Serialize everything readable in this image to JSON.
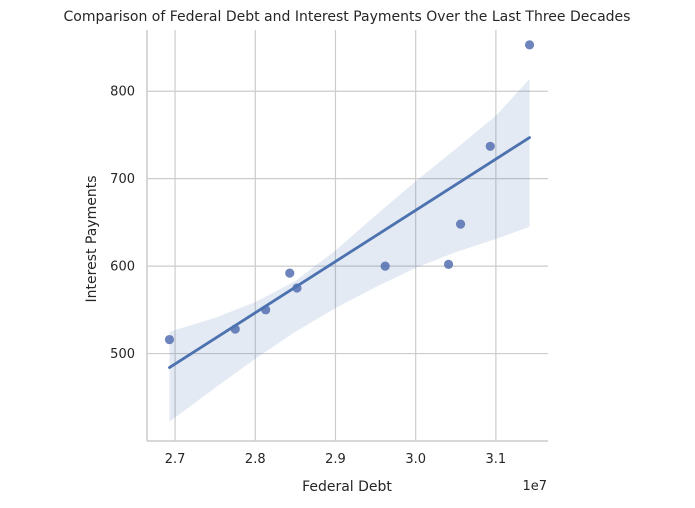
{
  "chart_data": {
    "type": "scatter",
    "title": "Comparison of Federal Debt and Interest Payments Over the Last Three Decades",
    "xlabel": "Federal Debt",
    "ylabel": "Interest Payments",
    "x_offset_label": "1e7",
    "xlim": [
      26650000,
      31650000
    ],
    "ylim": [
      400,
      870
    ],
    "xticks": [
      27000000,
      28000000,
      29000000,
      30000000,
      31000000
    ],
    "xtick_labels": [
      "2.7",
      "2.8",
      "2.9",
      "3.0",
      "3.1"
    ],
    "yticks": [
      500,
      600,
      700,
      800
    ],
    "ytick_labels": [
      "500",
      "600",
      "700",
      "800"
    ],
    "grid": true,
    "points": [
      {
        "x": 26930000,
        "y": 516
      },
      {
        "x": 27750000,
        "y": 528
      },
      {
        "x": 28130000,
        "y": 550
      },
      {
        "x": 28430000,
        "y": 592
      },
      {
        "x": 28520000,
        "y": 575
      },
      {
        "x": 29620000,
        "y": 600
      },
      {
        "x": 30410000,
        "y": 602
      },
      {
        "x": 30560000,
        "y": 648
      },
      {
        "x": 30930000,
        "y": 737
      },
      {
        "x": 31420000,
        "y": 853
      }
    ],
    "regression": {
      "x": [
        26930000,
        31420000
      ],
      "y": [
        484,
        747
      ]
    },
    "confidence_band": {
      "x": [
        26930000,
        27500000,
        28000000,
        28500000,
        29000000,
        29500000,
        30000000,
        30500000,
        31000000,
        31420000
      ],
      "upper": [
        525,
        541,
        559,
        583,
        618,
        658,
        697,
        734,
        772,
        814
      ],
      "lower": [
        422,
        461,
        494,
        525,
        552,
        576,
        598,
        616,
        631,
        645
      ]
    },
    "colors": {
      "points": "#5470b0",
      "line": "#4c72b0",
      "band": "#4c72b0",
      "grid": "#cccccc",
      "axis": "#cccccc"
    }
  }
}
